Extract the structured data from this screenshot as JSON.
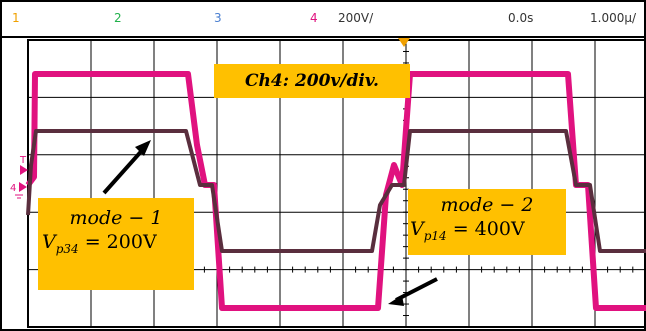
{
  "header": {
    "channels": [
      {
        "label": "1",
        "color": "#f0a000"
      },
      {
        "label": "2",
        "color": "#22b14c"
      },
      {
        "label": "3",
        "color": "#4a7fd0"
      },
      {
        "label": "4",
        "color": "#e0127f"
      }
    ],
    "ch4_scale": "200V/",
    "trigger_time": "0.0s",
    "timebase": "1.000µ/"
  },
  "markers": {
    "trigger_marker": "T",
    "ch4_ground_marker": "4"
  },
  "annotations": {
    "scale_note": "Ch4: 200v/div.",
    "mode1": {
      "line1": "mode − 1",
      "v_symbol": "V",
      "v_subscript": "p34",
      "v_rest": " = 200V"
    },
    "mode2": {
      "line1": "mode − 2",
      "v_symbol": "V",
      "v_subscript": "p14",
      "v_rest": " = 400V"
    }
  },
  "traces": {
    "ch4_color": "#e0127f",
    "ch3_color": "#5a2e3e",
    "vp14_levels_V": [
      400,
      0,
      -400
    ],
    "vp34_levels_V": [
      200,
      0,
      -200
    ]
  }
}
